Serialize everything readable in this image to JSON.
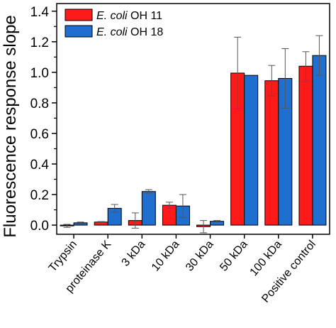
{
  "chart_data": {
    "type": "bar",
    "ylabel": "Fluorescence response slope",
    "xlabel": "",
    "ylim": [
      -0.06,
      1.45
    ],
    "yticks": [
      "0.0",
      "0.2",
      "0.4",
      "0.6",
      "0.8",
      "1.0",
      "1.2",
      "1.4"
    ],
    "ytick_values": [
      0.0,
      0.2,
      0.4,
      0.6,
      0.8,
      1.0,
      1.2,
      1.4
    ],
    "categories": [
      "Trypsin",
      "proteinase K",
      "3 kDa",
      "10 kDa",
      "30 kDa",
      "50 kDa",
      "100 kDa",
      "Positive control"
    ],
    "legend_position": "top-left",
    "series": [
      {
        "name_italic": "E. coli",
        "name_rest": " OH 11",
        "color": "#ff1a1a",
        "values": [
          -0.005,
          0.02,
          0.03,
          0.13,
          -0.01,
          0.995,
          0.945,
          1.04
        ],
        "errors": [
          0.01,
          0.003,
          0.05,
          0.02,
          0.04,
          0.235,
          0.1,
          0.095
        ]
      },
      {
        "name_italic": "E. coli",
        "name_rest": " OH 18",
        "color": "#1e6fd0",
        "values": [
          0.015,
          0.11,
          0.22,
          0.125,
          0.025,
          0.98,
          0.96,
          1.11
        ],
        "errors": [
          0.005,
          0.025,
          0.012,
          0.075,
          0.005,
          0.0,
          0.195,
          0.13
        ]
      }
    ]
  }
}
